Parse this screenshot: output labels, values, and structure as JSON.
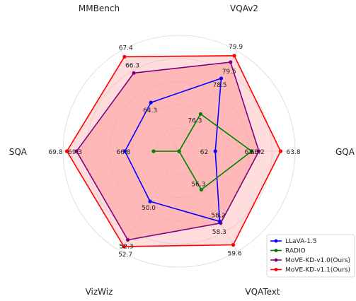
{
  "chart_data": {
    "type": "radar",
    "axes": [
      "GQA",
      "VQAv2",
      "MMBench",
      "SQA",
      "VizWiz",
      "VQAText"
    ],
    "series": [
      {
        "name": "LLaVA-1.5",
        "color": "#0000ff",
        "fill": false,
        "values": [
          62.0,
          78.5,
          64.3,
          66.8,
          50.0,
          58.2
        ],
        "labels": [
          "62",
          "78.5",
          "64.3",
          "66.8",
          "50.0",
          "58.2"
        ]
      },
      {
        "name": "RADIO",
        "color": "#008000",
        "fill": false,
        "values": [
          63.0,
          76.3,
          null,
          null,
          null,
          56.3
        ],
        "labels": [
          "63.0",
          "76.3",
          "",
          "",
          "",
          "56.3"
        ]
      },
      {
        "name": "MoVE-KD-v1.0(Ours)",
        "color": "#800080",
        "fill": true,
        "fill_color": "#ff9999",
        "values": [
          63.2,
          79.5,
          66.3,
          69.3,
          52.3,
          58.3
        ],
        "labels": [
          "63.2",
          "79.5",
          "66.3",
          "69.3",
          "52.3",
          "58.3"
        ]
      },
      {
        "name": "MoVE-KD-v1.1(Ours)",
        "color": "#ff0000",
        "fill": true,
        "fill_color": "#ffb3b3",
        "values": [
          63.8,
          79.9,
          67.4,
          69.8,
          52.7,
          59.6
        ],
        "labels": [
          "63.8",
          "79.9",
          "67.4",
          "69.8",
          "52.7",
          "59.6"
        ]
      }
    ],
    "legend_position": "bottom-right",
    "grid": true
  }
}
